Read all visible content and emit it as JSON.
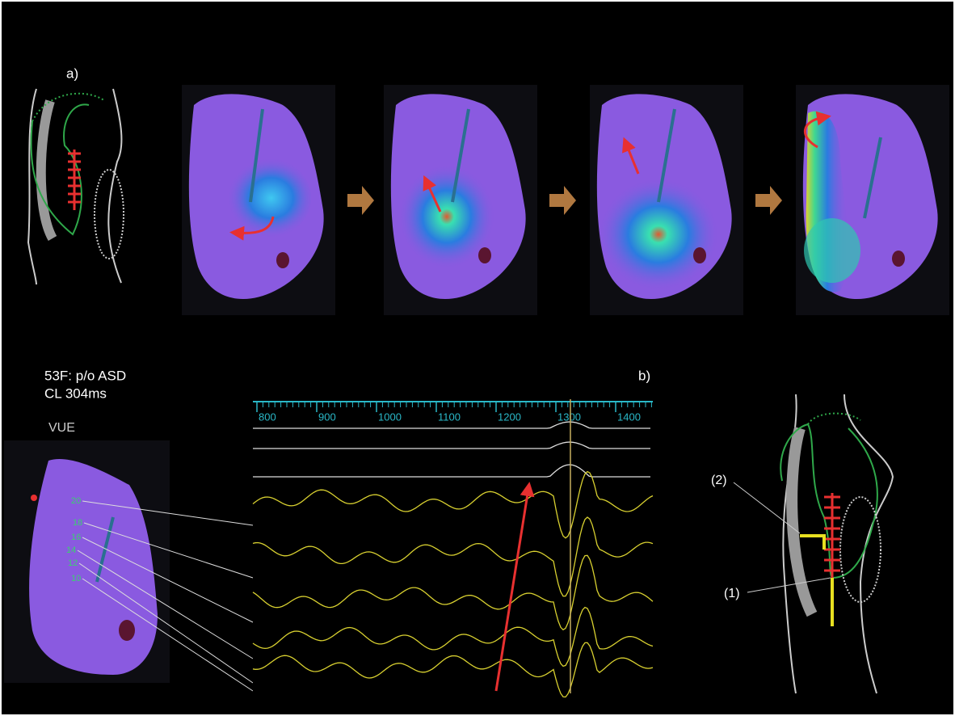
{
  "panel_a": {
    "label": "a)"
  },
  "panel_b": {
    "label": "b)",
    "patient": "53F: p/o ASD",
    "cycle_length": "CL 304ms",
    "view": "VUE",
    "electrodes": [
      "20",
      "18",
      "16",
      "14",
      "12",
      "10"
    ],
    "timeline_ticks": [
      800,
      900,
      1000,
      1100,
      1200,
      1300,
      1400
    ],
    "markers": [
      "(2)",
      "(1)"
    ]
  }
}
